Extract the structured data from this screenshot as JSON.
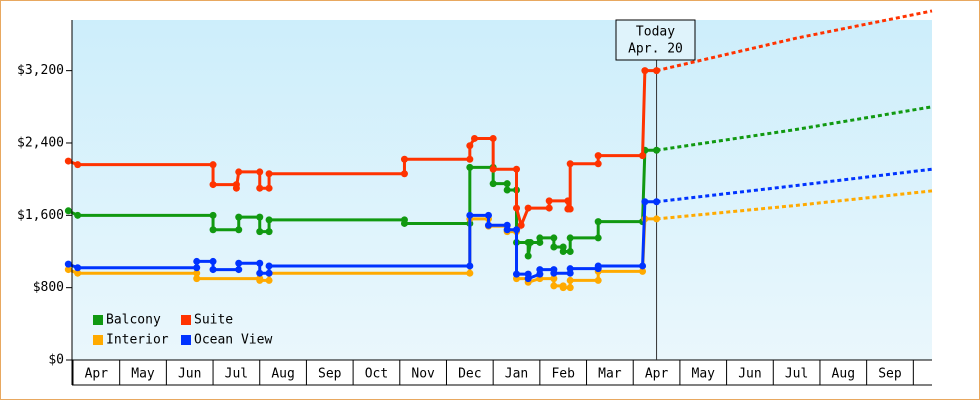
{
  "chart_data": {
    "type": "step-line",
    "categories": [
      "Apr",
      "May",
      "Jun",
      "Jul",
      "Aug",
      "Sep",
      "Oct",
      "Nov",
      "Dec",
      "Jan",
      "Feb",
      "Mar",
      "Apr",
      "May",
      "Jun",
      "Jul",
      "Aug",
      "Sep"
    ],
    "xlim": [
      -0.15,
      18.4
    ],
    "ylim": [
      0,
      3760
    ],
    "yticks": [
      {
        "value": 0,
        "label": "$0"
      },
      {
        "value": 800,
        "label": "$800"
      },
      {
        "value": 1600,
        "label": "$1,600"
      },
      {
        "value": 2400,
        "label": "$2,400"
      },
      {
        "value": 3200,
        "label": "$3,200"
      }
    ],
    "today": {
      "x": 12.5,
      "label": "Today",
      "date": "Apr. 20"
    },
    "series": [
      {
        "name": "Balcony",
        "color": "#119911",
        "x": [
          -0.1,
          0.1,
          3.0,
          3.0,
          3.55,
          3.55,
          4.0,
          4.0,
          4.2,
          4.2,
          7.1,
          7.1,
          8.5,
          8.5,
          9.0,
          9.0,
          9.3,
          9.3,
          9.5,
          9.5,
          9.75,
          9.75,
          9.8,
          10.0,
          10.0,
          10.3,
          10.3,
          10.5,
          10.5,
          10.65,
          10.65,
          11.25,
          11.25,
          12.2,
          12.25,
          12.5
        ],
        "values": [
          1650,
          1600,
          1600,
          1440,
          1440,
          1580,
          1580,
          1420,
          1420,
          1550,
          1550,
          1510,
          1510,
          2130,
          2130,
          1950,
          1950,
          1880,
          1880,
          1300,
          1300,
          1150,
          1300,
          1300,
          1350,
          1350,
          1250,
          1250,
          1200,
          1200,
          1350,
          1350,
          1530,
          1530,
          2320,
          2320
        ],
        "projection": {
          "x": [
            12.5,
            15.5,
            18.4
          ],
          "values": [
            2320,
            2550,
            2800
          ]
        }
      },
      {
        "name": "Suite",
        "color": "#ff3300",
        "x": [
          -0.1,
          0.1,
          3.0,
          3.0,
          3.5,
          3.5,
          3.55,
          4.0,
          4.0,
          4.2,
          4.2,
          7.1,
          7.1,
          8.5,
          8.5,
          8.6,
          9.0,
          9.0,
          9.5,
          9.5,
          9.6,
          9.75,
          10.2,
          10.2,
          10.6,
          10.6,
          10.65,
          10.65,
          11.25,
          11.25,
          12.2,
          12.25,
          12.5
        ],
        "values": [
          2200,
          2160,
          2160,
          1940,
          1940,
          1900,
          2080,
          2080,
          1900,
          1900,
          2060,
          2060,
          2220,
          2220,
          2370,
          2450,
          2450,
          2110,
          2110,
          1680,
          1490,
          1680,
          1680,
          1760,
          1760,
          1670,
          1670,
          2170,
          2170,
          2260,
          2260,
          3200,
          3200
        ],
        "projection": {
          "x": [
            12.5,
            15.5,
            18.4
          ],
          "values": [
            3200,
            3560,
            3860
          ]
        }
      },
      {
        "name": "Interior",
        "color": "#ffaa00",
        "x": [
          -0.1,
          0.1,
          2.65,
          2.65,
          4.0,
          4.0,
          4.2,
          4.2,
          8.5,
          8.5,
          8.9,
          8.9,
          9.3,
          9.3,
          9.5,
          9.5,
          9.75,
          9.75,
          10.0,
          10.3,
          10.3,
          10.5,
          10.5,
          10.65,
          10.65,
          11.25,
          11.25,
          12.2,
          12.25,
          12.5
        ],
        "values": [
          1000,
          960,
          960,
          900,
          900,
          880,
          880,
          960,
          960,
          1560,
          1560,
          1480,
          1480,
          1420,
          1420,
          900,
          900,
          860,
          900,
          900,
          820,
          820,
          800,
          800,
          880,
          880,
          980,
          980,
          1560,
          1560
        ],
        "projection": {
          "x": [
            12.5,
            15.5,
            18.4
          ],
          "values": [
            1560,
            1710,
            1870
          ]
        }
      },
      {
        "name": "Ocean View",
        "color": "#0033ff",
        "x": [
          -0.1,
          0.1,
          2.65,
          2.65,
          3.0,
          3.0,
          3.55,
          3.55,
          4.0,
          4.0,
          4.2,
          4.2,
          8.5,
          8.5,
          8.9,
          8.9,
          9.3,
          9.3,
          9.5,
          9.5,
          9.75,
          9.75,
          10.0,
          10.0,
          10.3,
          10.3,
          10.65,
          10.65,
          11.25,
          11.25,
          12.2,
          12.25,
          12.5
        ],
        "values": [
          1060,
          1020,
          1020,
          1090,
          1090,
          1000,
          1000,
          1070,
          1070,
          960,
          960,
          1040,
          1040,
          1600,
          1600,
          1490,
          1490,
          1440,
          1440,
          950,
          950,
          900,
          950,
          1000,
          1000,
          960,
          960,
          1010,
          1010,
          1040,
          1040,
          1750,
          1750
        ],
        "projection": {
          "x": [
            12.5,
            15.5,
            18.4
          ],
          "values": [
            1750,
            1930,
            2110
          ]
        }
      }
    ]
  }
}
